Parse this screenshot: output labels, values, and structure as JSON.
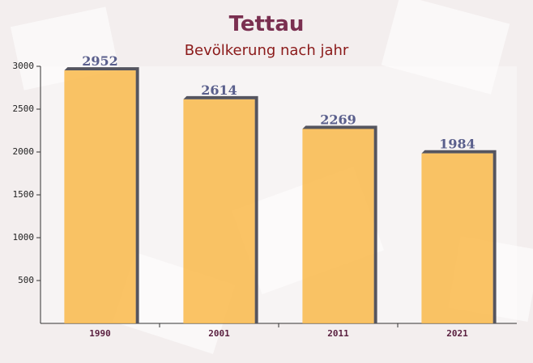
{
  "chart_data": {
    "type": "bar",
    "title": "Tettau",
    "subtitle": "Bevölkerung nach jahr",
    "categories": [
      "1990",
      "2001",
      "2011",
      "2021"
    ],
    "values": [
      2952,
      2614,
      2269,
      1984
    ],
    "color": "#f9b84a",
    "ylim": [
      0,
      3000
    ],
    "yticks": [
      500,
      1000,
      1500,
      2000,
      2500,
      3000
    ]
  }
}
